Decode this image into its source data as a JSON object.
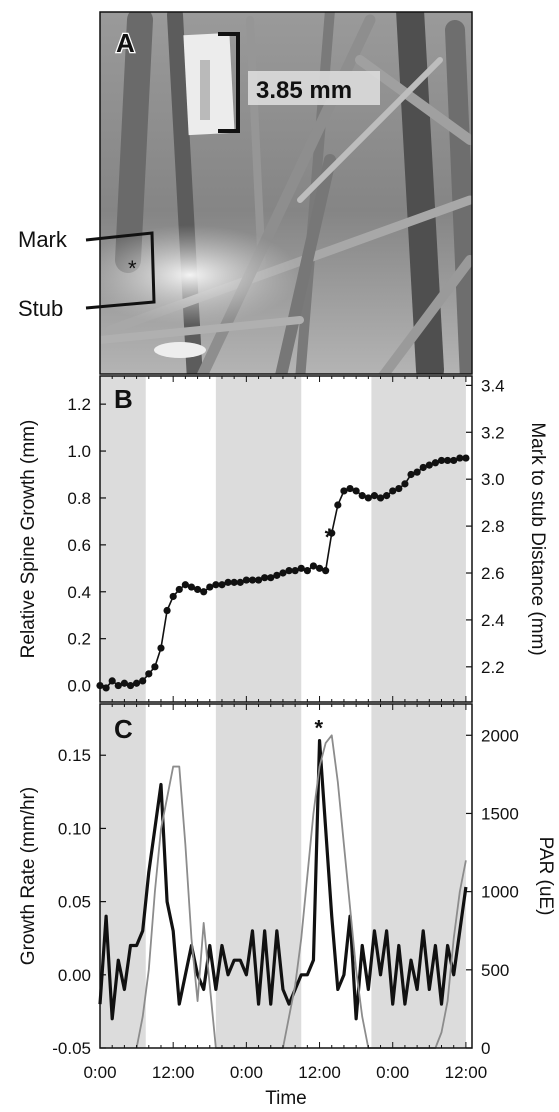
{
  "panel_a": {
    "letter": "A",
    "scale_label": "3.85 mm",
    "mark_label": "Mark",
    "stub_label": "Stub",
    "asterisk": "*"
  },
  "x_axis": {
    "label": "Time",
    "tick_labels": [
      "0:00",
      "12:00",
      "0:00",
      "12:00",
      "0:00",
      "12:00"
    ],
    "tick_hours": [
      0,
      12,
      24,
      36,
      48,
      60
    ],
    "range_hours": [
      0,
      61
    ]
  },
  "shading": {
    "color": "#dcdcdc",
    "dark_intervals_hours": [
      [
        0,
        7.5
      ],
      [
        19,
        33
      ],
      [
        44.5,
        60
      ]
    ]
  },
  "chart_data": [
    {
      "type": "line",
      "panel": "B",
      "letter": "B",
      "ylabel": "Relative Spine Growth (mm)",
      "y2label": "Mark to stub Distance (mm)",
      "ylim": [
        -0.07,
        1.32
      ],
      "yticks": [
        0.0,
        0.2,
        0.4,
        0.6,
        0.8,
        1.0,
        1.2
      ],
      "ytick_labels": [
        "0.0",
        "0.2",
        "0.4",
        "0.6",
        "0.8",
        "1.0",
        "1.2"
      ],
      "y2_ticks": [
        2.2,
        2.4,
        2.6,
        2.8,
        3.0,
        3.2,
        3.4
      ],
      "y2_tick_labels": [
        "2.2",
        "2.4",
        "2.6",
        "2.8",
        "3.0",
        "3.2",
        "3.4"
      ],
      "y2_offset": 2.12,
      "annotation": "*",
      "annotation_x": 36.5,
      "annotation_y": 0.66,
      "series": [
        {
          "color": "#111111",
          "x": [
            0,
            1,
            2,
            3,
            4,
            5,
            6,
            7,
            8,
            9,
            10,
            11,
            12,
            13,
            14,
            15,
            16,
            17,
            18,
            19,
            20,
            21,
            22,
            23,
            24,
            25,
            26,
            27,
            28,
            29,
            30,
            31,
            32,
            33,
            34,
            35,
            36,
            37,
            38,
            39,
            40,
            41,
            42,
            43,
            44,
            45,
            46,
            47,
            48,
            49,
            50,
            51,
            52,
            53,
            54,
            55,
            56,
            57,
            58,
            59,
            60
          ],
          "y": [
            0.0,
            -0.01,
            0.02,
            0.0,
            0.01,
            0.0,
            0.01,
            0.02,
            0.05,
            0.08,
            0.16,
            0.32,
            0.38,
            0.41,
            0.43,
            0.42,
            0.41,
            0.4,
            0.42,
            0.43,
            0.43,
            0.44,
            0.44,
            0.44,
            0.45,
            0.45,
            0.45,
            0.46,
            0.46,
            0.47,
            0.48,
            0.49,
            0.49,
            0.5,
            0.49,
            0.51,
            0.5,
            0.49,
            0.65,
            0.77,
            0.83,
            0.84,
            0.83,
            0.81,
            0.8,
            0.81,
            0.8,
            0.81,
            0.83,
            0.84,
            0.86,
            0.9,
            0.91,
            0.93,
            0.94,
            0.95,
            0.96,
            0.96,
            0.96,
            0.97,
            0.97
          ]
        }
      ]
    },
    {
      "type": "line",
      "panel": "C",
      "letter": "C",
      "ylabel": "Growth Rate (mm/hr)",
      "y2label": "PAR (uE)",
      "ylim": [
        -0.05,
        0.185
      ],
      "yticks": [
        -0.05,
        0.0,
        0.05,
        0.1,
        0.15
      ],
      "ytick_labels": [
        "-0.05",
        "0.00",
        "0.05",
        "0.10",
        "0.15"
      ],
      "y2lim": [
        0,
        2200
      ],
      "y2_ticks": [
        0,
        500,
        1000,
        1500,
        2000
      ],
      "y2_tick_labels": [
        "0",
        "500",
        "1000",
        "1500",
        "2000"
      ],
      "annotation": "*",
      "annotation_x": 36,
      "annotation_y": 0.165,
      "series": [
        {
          "role": "growth_rate",
          "axis": "left",
          "color": "#111111",
          "x": [
            0,
            1,
            2,
            3,
            4,
            5,
            6,
            7,
            8,
            9,
            10,
            11,
            12,
            13,
            14,
            15,
            16,
            17,
            18,
            19,
            20,
            21,
            22,
            23,
            24,
            25,
            26,
            27,
            28,
            29,
            30,
            31,
            32,
            33,
            34,
            35,
            36,
            37,
            38,
            39,
            40,
            41,
            42,
            43,
            44,
            45,
            46,
            47,
            48,
            49,
            50,
            51,
            52,
            53,
            54,
            55,
            56,
            57,
            58,
            59,
            60
          ],
          "y": [
            -0.02,
            0.04,
            -0.03,
            0.01,
            -0.01,
            0.02,
            0.02,
            0.03,
            0.07,
            0.1,
            0.13,
            0.05,
            0.03,
            -0.02,
            0.0,
            0.02,
            0.0,
            -0.01,
            0.02,
            -0.01,
            0.02,
            0.0,
            0.01,
            0.01,
            0.0,
            0.03,
            -0.02,
            0.03,
            -0.02,
            0.03,
            -0.01,
            -0.02,
            -0.01,
            0.0,
            0.0,
            0.01,
            0.16,
            0.1,
            0.04,
            -0.01,
            0.0,
            0.04,
            -0.03,
            0.02,
            -0.01,
            0.03,
            0.0,
            0.03,
            -0.02,
            0.02,
            -0.02,
            0.01,
            -0.01,
            0.03,
            -0.01,
            0.02,
            -0.02,
            0.02,
            0.0,
            0.03,
            0.06
          ]
        },
        {
          "role": "par",
          "axis": "right",
          "color": "#8c8c8c",
          "x": [
            6,
            7,
            8,
            9,
            10,
            11,
            12,
            13,
            14,
            15,
            16,
            17,
            18,
            19,
            20,
            30,
            31,
            32,
            33,
            34,
            35,
            36,
            37,
            38,
            39,
            40,
            41,
            42,
            43,
            44,
            45,
            55,
            56,
            57,
            58,
            59,
            60
          ],
          "y": [
            0,
            200,
            500,
            1000,
            1400,
            1600,
            1800,
            1800,
            1300,
            700,
            300,
            800,
            400,
            0,
            0,
            0,
            200,
            400,
            700,
            1100,
            1500,
            1800,
            1950,
            2000,
            1700,
            1300,
            900,
            500,
            200,
            0,
            0,
            0,
            100,
            300,
            700,
            1000,
            1200
          ]
        }
      ]
    }
  ]
}
